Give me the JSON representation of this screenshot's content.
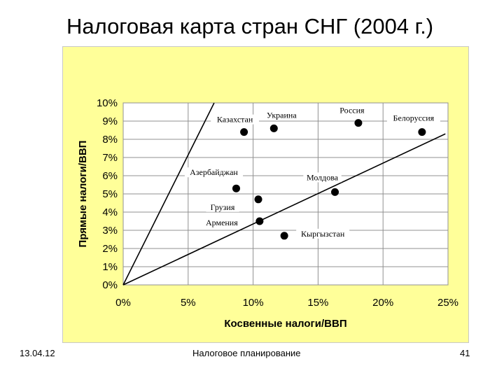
{
  "slide": {
    "title": "Налоговая карта стран СНГ (2004 г.)",
    "date": "13.04.12",
    "footer": "Налоговое планирование",
    "page_number": "41"
  },
  "colors": {
    "panel_background": "#ffff99",
    "plot_background": "#ffffff",
    "points": "#000000"
  },
  "chart_data": {
    "type": "scatter",
    "title": "",
    "xlabel": "Косвенные налоги/ВВП",
    "ylabel": "Прямые налоги/ВВП",
    "xlim": [
      0,
      25
    ],
    "ylim": [
      0,
      10
    ],
    "x_ticks": [
      0,
      5,
      10,
      15,
      20,
      25
    ],
    "x_tick_labels": [
      "0%",
      "5%",
      "10%",
      "15%",
      "20%",
      "25%"
    ],
    "y_ticks": [
      0,
      1,
      2,
      3,
      4,
      5,
      6,
      7,
      8,
      9,
      10
    ],
    "y_tick_labels": [
      "0%",
      "1%",
      "2%",
      "3%",
      "4%",
      "5%",
      "6%",
      "7%",
      "8%",
      "9%",
      "10%"
    ],
    "grid": true,
    "legend": "none",
    "points": [
      {
        "label": "Казахстан",
        "x": 9.3,
        "y": 8.4
      },
      {
        "label": "Украина",
        "x": 11.6,
        "y": 8.6
      },
      {
        "label": "Россия",
        "x": 18.1,
        "y": 8.9
      },
      {
        "label": "Белоруссия",
        "x": 23.0,
        "y": 8.4
      },
      {
        "label": "Азербайджан",
        "x": 8.7,
        "y": 5.3
      },
      {
        "label": "Молдова",
        "x": 16.3,
        "y": 5.1
      },
      {
        "label": "Грузия",
        "x": 10.4,
        "y": 4.7
      },
      {
        "label": "Армения",
        "x": 10.5,
        "y": 3.5
      },
      {
        "label": "Кыргызстан",
        "x": 12.4,
        "y": 2.7
      }
    ],
    "lines": [
      {
        "from": [
          0,
          0
        ],
        "to": [
          7.0,
          10.0
        ]
      },
      {
        "from": [
          0,
          0
        ],
        "to": [
          24.8,
          8.3
        ]
      }
    ]
  }
}
